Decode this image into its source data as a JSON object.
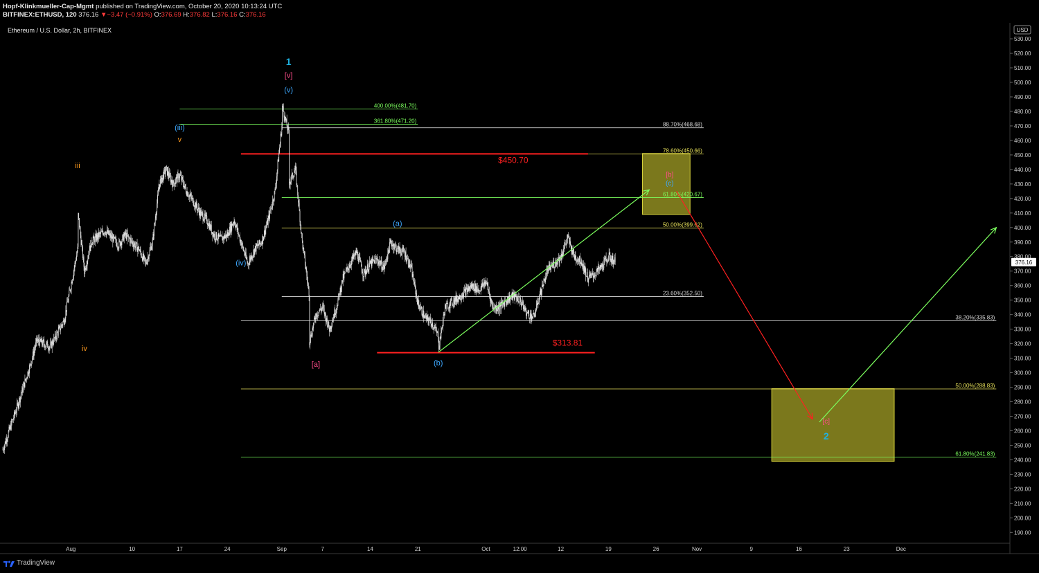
{
  "header": {
    "publisher": "Hopf-Klinkmueller-Cap-Mgmt",
    "published_text": "published on TradingView.com, October 20, 2020 10:13:24 UTC",
    "symbol": "BITFINEX:ETHUSD, 120",
    "last": "376.16",
    "change_arrow": "▼",
    "change": "−3.47 (−0.91%)",
    "o_label": "O:",
    "o_value": "376.69",
    "h_label": "H:",
    "h_value": "376.82",
    "l_label": "L:",
    "l_value": "376.16",
    "c_label": "C:",
    "c_value": "376.16"
  },
  "chart_title": "Ethereum / U.S. Dollar, 2h, BITFINEX",
  "footer": {
    "brand": "TradingView"
  },
  "colors": {
    "background": "#000000",
    "candles": "#e6e6e6",
    "green": "#7cff5e",
    "red": "#ff2020",
    "yellow_box": "#b5b12a",
    "cyan": "#1fb2e0",
    "blue_label": "#3da8ff",
    "orange_label": "#ff9a1e",
    "magenta_label": "#ff4d8a"
  },
  "chart_data": {
    "type": "candlestick",
    "title": "Ethereum / U.S. Dollar, 2h, BITFINEX",
    "currency": "USD",
    "ylim": [
      183,
      541
    ],
    "y_ticks": [
      190,
      200,
      210,
      220,
      230,
      240,
      250,
      260,
      270,
      280,
      290,
      300,
      310,
      320,
      330,
      340,
      350,
      360,
      370,
      380,
      390,
      400,
      410,
      420,
      430,
      440,
      450,
      460,
      470,
      480,
      490,
      500,
      510,
      520,
      530
    ],
    "y_tick_labels": [
      "190.00",
      "200.00",
      "210.00",
      "220.00",
      "230.00",
      "240.00",
      "250.00",
      "260.00",
      "270.00",
      "280.00",
      "290.00",
      "300.00",
      "310.00",
      "320.00",
      "330.00",
      "340.00",
      "350.00",
      "360.00",
      "370.00",
      "380.00",
      "390.00",
      "400.00",
      "410.00",
      "420.00",
      "430.00",
      "440.00",
      "450.00",
      "460.00",
      "470.00",
      "480.00",
      "490.00",
      "500.00",
      "510.00",
      "520.00",
      "530.00"
    ],
    "x_range": [
      "2020-07-22",
      "2020-12-17"
    ],
    "x_ticks": [
      {
        "date": "2020-08-01",
        "label": "Aug"
      },
      {
        "date": "2020-08-10",
        "label": "10"
      },
      {
        "date": "2020-08-17",
        "label": "17"
      },
      {
        "date": "2020-08-24",
        "label": "24"
      },
      {
        "date": "2020-09-01",
        "label": "Sep"
      },
      {
        "date": "2020-09-07",
        "label": "7"
      },
      {
        "date": "2020-09-14",
        "label": "14"
      },
      {
        "date": "2020-09-21",
        "label": "21"
      },
      {
        "date": "2020-10-01",
        "label": "Oct"
      },
      {
        "date": "2020-10-06",
        "label": "12:00"
      },
      {
        "date": "2020-10-12",
        "label": "12"
      },
      {
        "date": "2020-10-19",
        "label": "19"
      },
      {
        "date": "2020-10-26",
        "label": "26"
      },
      {
        "date": "2020-11-01",
        "label": "Nov"
      },
      {
        "date": "2020-11-09",
        "label": "9"
      },
      {
        "date": "2020-11-16",
        "label": "16"
      },
      {
        "date": "2020-11-23",
        "label": "23"
      },
      {
        "date": "2020-12-01",
        "label": "Dec"
      }
    ],
    "last_price": 376.16,
    "last_price_label": "376.16",
    "price_path": [
      [
        "2020-07-22",
        247
      ],
      [
        "2020-07-24",
        275
      ],
      [
        "2020-07-26",
        305
      ],
      [
        "2020-07-27",
        322
      ],
      [
        "2020-07-29",
        318
      ],
      [
        "2020-07-31",
        336
      ],
      [
        "2020-08-01",
        360
      ],
      [
        "2020-08-02",
        385
      ],
      [
        "2020-08-02",
        412
      ],
      [
        "2020-08-03",
        370
      ],
      [
        "2020-08-04",
        390
      ],
      [
        "2020-08-06",
        398
      ],
      [
        "2020-08-08",
        388
      ],
      [
        "2020-08-09",
        395
      ],
      [
        "2020-08-11",
        385
      ],
      [
        "2020-08-12",
        375
      ],
      [
        "2020-08-13",
        390
      ],
      [
        "2020-08-14",
        430
      ],
      [
        "2020-08-15",
        440
      ],
      [
        "2020-08-16",
        430
      ],
      [
        "2020-08-17",
        436
      ],
      [
        "2020-08-18",
        425
      ],
      [
        "2020-08-19",
        418
      ],
      [
        "2020-08-20",
        410
      ],
      [
        "2020-08-21",
        405
      ],
      [
        "2020-08-22",
        395
      ],
      [
        "2020-08-23",
        392
      ],
      [
        "2020-08-24",
        395
      ],
      [
        "2020-08-25",
        405
      ],
      [
        "2020-08-26",
        390
      ],
      [
        "2020-08-27",
        375
      ],
      [
        "2020-08-28",
        385
      ],
      [
        "2020-08-29",
        390
      ],
      [
        "2020-08-30",
        405
      ],
      [
        "2020-08-31",
        425
      ],
      [
        "2020-09-01",
        470
      ],
      [
        "2020-09-01",
        485
      ],
      [
        "2020-09-02",
        465
      ],
      [
        "2020-09-02",
        430
      ],
      [
        "2020-09-03",
        440
      ],
      [
        "2020-09-04",
        390
      ],
      [
        "2020-09-05",
        355
      ],
      [
        "2020-09-05",
        320
      ],
      [
        "2020-09-06",
        340
      ],
      [
        "2020-09-07",
        345
      ],
      [
        "2020-09-08",
        330
      ],
      [
        "2020-09-09",
        345
      ],
      [
        "2020-09-10",
        365
      ],
      [
        "2020-09-11",
        375
      ],
      [
        "2020-09-12",
        383
      ],
      [
        "2020-09-13",
        368
      ],
      [
        "2020-09-14",
        375
      ],
      [
        "2020-09-15",
        378
      ],
      [
        "2020-09-16",
        372
      ],
      [
        "2020-09-17",
        390
      ],
      [
        "2020-09-18",
        385
      ],
      [
        "2020-09-19",
        383
      ],
      [
        "2020-09-20",
        372
      ],
      [
        "2020-09-21",
        348
      ],
      [
        "2020-09-22",
        338
      ],
      [
        "2020-09-23",
        335
      ],
      [
        "2020-09-24",
        325
      ],
      [
        "2020-09-24",
        316
      ],
      [
        "2020-09-25",
        345
      ],
      [
        "2020-09-27",
        352
      ],
      [
        "2020-09-29",
        360
      ],
      [
        "2020-09-30",
        357
      ],
      [
        "2020-10-01",
        363
      ],
      [
        "2020-10-02",
        345
      ],
      [
        "2020-10-03",
        345
      ],
      [
        "2020-10-04",
        350
      ],
      [
        "2020-10-05",
        353
      ],
      [
        "2020-10-06",
        350
      ],
      [
        "2020-10-07",
        341
      ],
      [
        "2020-10-08",
        338
      ],
      [
        "2020-10-09",
        355
      ],
      [
        "2020-10-10",
        370
      ],
      [
        "2020-10-11",
        375
      ],
      [
        "2020-10-12",
        380
      ],
      [
        "2020-10-13",
        393
      ],
      [
        "2020-10-14",
        380
      ],
      [
        "2020-10-15",
        377
      ],
      [
        "2020-10-16",
        365
      ],
      [
        "2020-10-17",
        368
      ],
      [
        "2020-10-18",
        373
      ],
      [
        "2020-10-19",
        380
      ],
      [
        "2020-10-20",
        376.16
      ]
    ],
    "horizontal_lines": [
      {
        "y": 481.7,
        "label": "400.00%(481.70)",
        "color": "green",
        "from": "2020-08-17",
        "to": "2020-09-21"
      },
      {
        "y": 471.2,
        "label": "361.80%(471.20)",
        "color": "green",
        "from": "2020-08-17",
        "to": "2020-09-21"
      },
      {
        "y": 468.68,
        "label": "88.70%(468.68)",
        "color": "white",
        "from": "2020-09-01",
        "to": "2020-11-02"
      },
      {
        "y": 450.66,
        "label": "78.60%(450.66)",
        "color": "yellow",
        "from": "2020-09-01",
        "to": "2020-11-02"
      },
      {
        "y": 420.67,
        "label": "61.80%(420.67)",
        "color": "green",
        "from": "2020-09-01",
        "to": "2020-11-02"
      },
      {
        "y": 399.62,
        "label": "50.00%(399.62)",
        "color": "yellow",
        "from": "2020-09-01",
        "to": "2020-11-02"
      },
      {
        "y": 352.5,
        "label": "23.60%(352.50)",
        "color": "white",
        "from": "2020-09-01",
        "to": "2020-11-02"
      },
      {
        "y": 335.83,
        "label": "38.20%(335.83)",
        "color": "white",
        "from": "2020-08-26",
        "to": "2020-12-15"
      },
      {
        "y": 288.83,
        "label": "50.00%(288.83)",
        "color": "yellow",
        "from": "2020-08-26",
        "to": "2020-12-15"
      },
      {
        "y": 241.83,
        "label": "61.80%(241.83)",
        "color": "green",
        "from": "2020-08-26",
        "to": "2020-12-15"
      }
    ],
    "price_marks": [
      {
        "y": 450.7,
        "label": "$450.70",
        "from": "2020-08-26",
        "to": "2020-10-16",
        "label_at": "2020-10-05"
      },
      {
        "y": 313.81,
        "label": "$313.81",
        "from": "2020-09-15",
        "to": "2020-10-17",
        "label_at": "2020-10-13"
      }
    ],
    "target_boxes": [
      {
        "from": "2020-10-24",
        "to": "2020-10-31",
        "y_top": 451,
        "y_bottom": 409
      },
      {
        "from": "2020-11-12",
        "to": "2020-11-30",
        "y_top": 289,
        "y_bottom": 239
      }
    ],
    "arrows": [
      {
        "from": [
          "2020-09-24",
          314
        ],
        "to": [
          "2020-10-25",
          426
        ],
        "color": "green"
      },
      {
        "from": [
          "2020-10-29",
          425
        ],
        "to": [
          "2020-11-18",
          268
        ],
        "color": "red"
      },
      {
        "from": [
          "2020-11-19",
          266
        ],
        "to": [
          "2020-12-15",
          400
        ],
        "color": "green"
      }
    ],
    "wave_labels": [
      {
        "text": "1",
        "date": "2020-09-02",
        "y": 512,
        "color": "cyan",
        "size": 14
      },
      {
        "text": "[v]",
        "date": "2020-09-02",
        "y": 503,
        "color": "magenta",
        "size": 11
      },
      {
        "text": "(v)",
        "date": "2020-09-02",
        "y": 493,
        "color": "blue",
        "size": 11
      },
      {
        "text": "(iii)",
        "date": "2020-08-17",
        "y": 467,
        "color": "blue",
        "size": 11
      },
      {
        "text": "v",
        "date": "2020-08-17",
        "y": 459,
        "color": "orange",
        "size": 11
      },
      {
        "text": "iii",
        "date": "2020-08-02",
        "y": 441,
        "color": "orange",
        "size": 11
      },
      {
        "text": "(iv)",
        "date": "2020-08-26",
        "y": 374,
        "color": "blue",
        "size": 11
      },
      {
        "text": "iv",
        "date": "2020-08-03",
        "y": 315,
        "color": "orange",
        "size": 11
      },
      {
        "text": "[a]",
        "date": "2020-09-06",
        "y": 304,
        "color": "magenta",
        "size": 11
      },
      {
        "text": "(a)",
        "date": "2020-09-18",
        "y": 401,
        "color": "blue",
        "size": 11
      },
      {
        "text": "(b)",
        "date": "2020-09-24",
        "y": 305,
        "color": "blue",
        "size": 11
      },
      {
        "text": "[b]",
        "date": "2020-10-28",
        "y": 435,
        "color": "magenta",
        "size": 10
      },
      {
        "text": "(c)",
        "date": "2020-10-28",
        "y": 429,
        "color": "blue",
        "size": 10
      },
      {
        "text": "[c]",
        "date": "2020-11-20",
        "y": 265,
        "color": "magenta",
        "size": 10
      },
      {
        "text": "2",
        "date": "2020-11-20",
        "y": 254,
        "color": "cyan",
        "size": 14
      }
    ]
  }
}
